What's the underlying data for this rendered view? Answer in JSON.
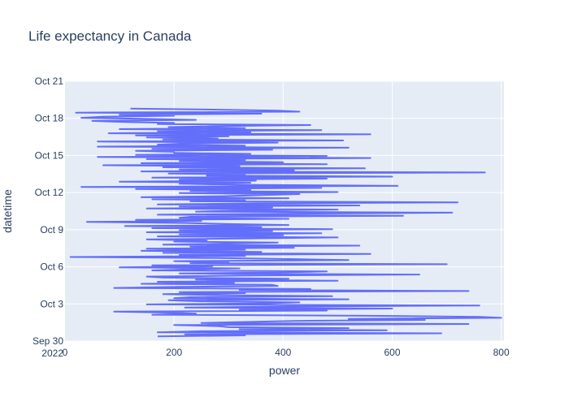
{
  "chart_data": {
    "type": "line",
    "orientation": "horizontal",
    "title": "Life expectancy in Canada",
    "xlabel": "power",
    "ylabel": "datetime",
    "xlim": [
      0,
      805
    ],
    "ylim": [
      "2022-09-30T00:00",
      "2022-10-21T00:00"
    ],
    "x_ticks": [
      {
        "value": 0,
        "label": "0"
      },
      {
        "value": 200,
        "label": "200"
      },
      {
        "value": 400,
        "label": "400"
      },
      {
        "value": 600,
        "label": "600"
      },
      {
        "value": 800,
        "label": "800"
      }
    ],
    "y_ticks": [
      {
        "value": "2022-09-30T00:00",
        "label": "Sep 30",
        "sublabel": "2022"
      },
      {
        "value": "2022-10-03T00:00",
        "label": "Oct 3"
      },
      {
        "value": "2022-10-06T00:00",
        "label": "Oct 6"
      },
      {
        "value": "2022-10-09T00:00",
        "label": "Oct 9"
      },
      {
        "value": "2022-10-12T00:00",
        "label": "Oct 12"
      },
      {
        "value": "2022-10-15T00:00",
        "label": "Oct 15"
      },
      {
        "value": "2022-10-18T00:00",
        "label": "Oct 18"
      },
      {
        "value": "2022-10-21T00:00",
        "label": "Oct 21"
      }
    ],
    "grid": true,
    "colors": {
      "line": "#636efa",
      "plot_bg": "#e5ecf6",
      "grid": "#ffffff",
      "text": "#2a3f5f"
    },
    "series": [
      {
        "start": "2022-09-30T09:00",
        "interval_hours": 2,
        "values": [
          170,
          330,
          220,
          690,
          170,
          250,
          590,
          320,
          520,
          300,
          280,
          200,
          740,
          250,
          330,
          420,
          660,
          520,
          800,
          760,
          560,
          160,
          240,
          200,
          90,
          480,
          320,
          600,
          220,
          410,
          760,
          150,
          360,
          430,
          250,
          190,
          520,
          200,
          230,
          490,
          280,
          180,
          330,
          210,
          740,
          320,
          450,
          90,
          210,
          390,
          380,
          140,
          310,
          170,
          500,
          240,
          410,
          180,
          150,
          320,
          650,
          210,
          380,
          480,
          160,
          230,
          320,
          100,
          270,
          160,
          700,
          230,
          300,
          200,
          520,
          410,
          280,
          10,
          330,
          210,
          560,
          180,
          360,
          140,
          330,
          150,
          420,
          230,
          540,
          180,
          300,
          390,
          200,
          260,
          150,
          330,
          500,
          170,
          400,
          210,
          470,
          150,
          380,
          210,
          490,
          160,
          360,
          110,
          410,
          300,
          220,
          40,
          250,
          130,
          410,
          210,
          230,
          620,
          170,
          400,
          710,
          240,
          320,
          500,
          150,
          380,
          210,
          540,
          170,
          350,
          720,
          230,
          330,
          160,
          410,
          140,
          290,
          360,
          430,
          210,
          500,
          230,
          340,
          130,
          470,
          30,
          610,
          320,
          210,
          340,
          100,
          350,
          210,
          480,
          160,
          600,
          260,
          330,
          190,
          770,
          140,
          420,
          210,
          550,
          180,
          320,
          70,
          480,
          140,
          400,
          210,
          330,
          150,
          560,
          60,
          480,
          130,
          340,
          200,
          200,
          130,
          380,
          160,
          520,
          60,
          330,
          170,
          220,
          390,
          60,
          510,
          180,
          280,
          150,
          300,
          130,
          560,
          80,
          340,
          170,
          470,
          100,
          330,
          190,
          290,
          450,
          170,
          200,
          110,
          50,
          240,
          140,
          30,
          70,
          200,
          100,
          360,
          20,
          430,
          390,
          260,
          120
        ]
      }
    ]
  }
}
